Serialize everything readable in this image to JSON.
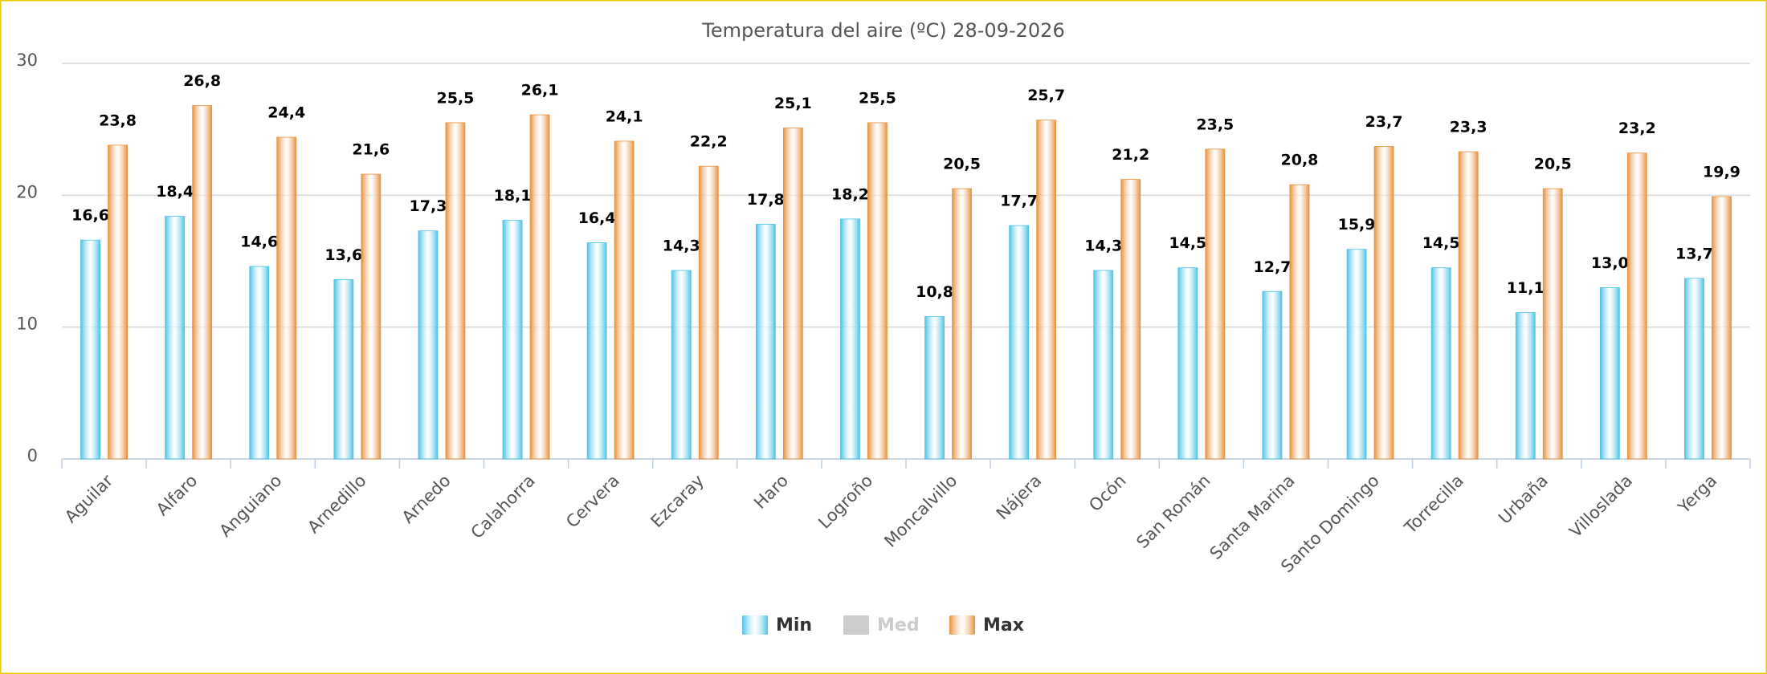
{
  "chart_data": {
    "type": "bar",
    "title": "Temperatura del aire (ºC) 28-09-2026",
    "categories": [
      "Aguilar",
      "Alfaro",
      "Anguiano",
      "Arnedillo",
      "Arnedo",
      "Calahorra",
      "Cervera",
      "Ezcaray",
      "Haro",
      "Logroño",
      "Moncalvillo",
      "Nájera",
      "Ocón",
      "San Román",
      "Santa Marina",
      "Santo Domingo",
      "Torrecilla",
      "Urbaña",
      "Villoslada",
      "Yerga"
    ],
    "series": [
      {
        "name": "Min",
        "color": "#4cc4e6",
        "visible": true,
        "values": [
          16.6,
          18.4,
          14.6,
          13.6,
          17.3,
          18.1,
          16.4,
          14.3,
          17.8,
          18.2,
          10.8,
          17.7,
          14.3,
          14.5,
          12.7,
          15.9,
          14.5,
          11.1,
          13.0,
          13.7
        ],
        "value_labels": [
          "16,6",
          "18,4",
          "14,6",
          "13,6",
          "17,3",
          "18,1",
          "16,4",
          "14,3",
          "17,8",
          "18,2",
          "10,8",
          "17,7",
          "14,3",
          "14,5",
          "12,7",
          "15,9",
          "14,5",
          "11,1",
          "13,0",
          "13,7"
        ]
      },
      {
        "name": "Med",
        "color": "#cccccc",
        "visible": false,
        "values": [
          null,
          null,
          null,
          null,
          null,
          null,
          null,
          null,
          null,
          null,
          null,
          null,
          null,
          null,
          null,
          null,
          null,
          null,
          null,
          null
        ]
      },
      {
        "name": "Max",
        "color": "#e8913c",
        "visible": true,
        "values": [
          23.8,
          26.8,
          24.4,
          21.6,
          25.5,
          26.1,
          24.1,
          22.2,
          25.1,
          25.5,
          20.5,
          25.7,
          21.2,
          23.5,
          20.8,
          23.7,
          23.3,
          20.5,
          23.2,
          19.9
        ],
        "value_labels": [
          "23,8",
          "26,8",
          "24,4",
          "21,6",
          "25,5",
          "26,1",
          "24,1",
          "22,2",
          "25,1",
          "25,5",
          "20,5",
          "25,7",
          "21,2",
          "23,5",
          "20,8",
          "23,7",
          "23,3",
          "20,5",
          "23,2",
          "19,9"
        ]
      }
    ],
    "ylim": [
      0,
      30
    ],
    "yticks": [
      0,
      10,
      20,
      30
    ],
    "grid": true,
    "legend": "bottom"
  }
}
